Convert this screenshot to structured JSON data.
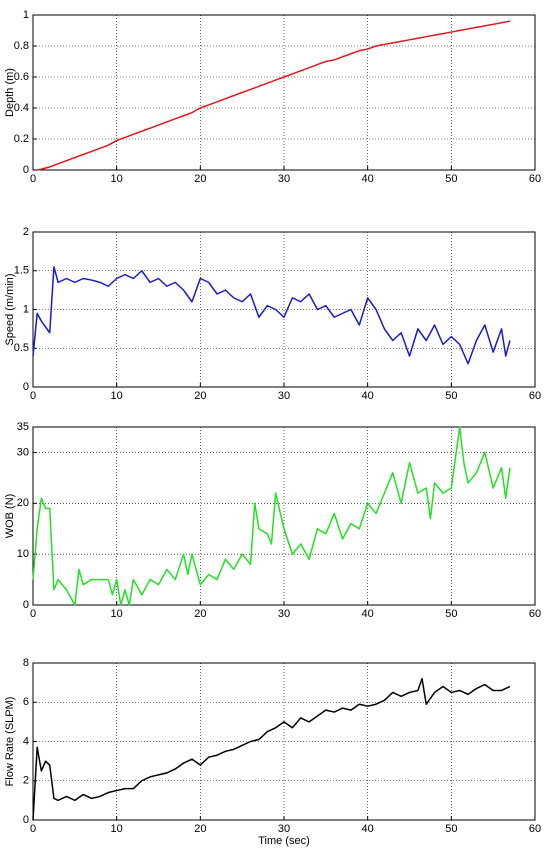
{
  "chart_data": [
    {
      "type": "line",
      "y_label": "Depth (m)",
      "xlim": [
        0,
        60
      ],
      "xticks": [
        0,
        10,
        20,
        30,
        40,
        50,
        60
      ],
      "ylim": [
        0,
        1
      ],
      "yticks": [
        0,
        0.2,
        0.4,
        0.6,
        0.8,
        1
      ],
      "grid": true,
      "series": [
        {
          "color": "#e0181c",
          "x": [
            0.5,
            1,
            2,
            3,
            4,
            5,
            6,
            7,
            8,
            9,
            10,
            11,
            12,
            13,
            14,
            15,
            16,
            17,
            18,
            19,
            20,
            21,
            22,
            23,
            24,
            25,
            26,
            27,
            28,
            29,
            30,
            31,
            32,
            33,
            34,
            35,
            36,
            37,
            38,
            39,
            40,
            41,
            42,
            43,
            44,
            45,
            46,
            47,
            48,
            49,
            50,
            51,
            52,
            53,
            54,
            55,
            56,
            57
          ],
          "values": [
            0,
            0.005,
            0.02,
            0.04,
            0.06,
            0.08,
            0.1,
            0.12,
            0.14,
            0.16,
            0.19,
            0.21,
            0.23,
            0.25,
            0.27,
            0.29,
            0.31,
            0.33,
            0.35,
            0.37,
            0.4,
            0.42,
            0.44,
            0.46,
            0.48,
            0.5,
            0.52,
            0.54,
            0.56,
            0.58,
            0.6,
            0.62,
            0.64,
            0.66,
            0.68,
            0.7,
            0.71,
            0.73,
            0.75,
            0.77,
            0.78,
            0.8,
            0.81,
            0.82,
            0.83,
            0.84,
            0.85,
            0.86,
            0.87,
            0.88,
            0.89,
            0.9,
            0.91,
            0.92,
            0.93,
            0.94,
            0.95,
            0.96
          ]
        }
      ]
    },
    {
      "type": "line",
      "y_label": "Speed (m/min)",
      "xlim": [
        0,
        60
      ],
      "xticks": [
        0,
        10,
        20,
        30,
        40,
        50,
        60
      ],
      "ylim": [
        0,
        2
      ],
      "yticks": [
        0,
        0.5,
        1,
        1.5,
        2
      ],
      "grid": true,
      "series": [
        {
          "color": "#1a1ac8",
          "x": [
            0,
            0.5,
            1,
            2,
            2.5,
            3,
            4,
            5,
            6,
            7,
            8,
            9,
            10,
            11,
            12,
            13,
            14,
            15,
            16,
            17,
            18,
            19,
            20,
            21,
            22,
            23,
            24,
            25,
            26,
            27,
            28,
            29,
            30,
            31,
            32,
            33,
            34,
            35,
            36,
            37,
            38,
            39,
            40,
            41,
            42,
            43,
            44,
            45,
            46,
            47,
            48,
            49,
            50,
            51,
            52,
            53,
            54,
            55,
            56,
            56.5,
            57
          ],
          "values": [
            0.4,
            0.95,
            0.85,
            0.7,
            1.55,
            1.35,
            1.4,
            1.35,
            1.4,
            1.38,
            1.35,
            1.3,
            1.4,
            1.45,
            1.4,
            1.5,
            1.35,
            1.4,
            1.3,
            1.35,
            1.25,
            1.1,
            1.4,
            1.35,
            1.2,
            1.25,
            1.15,
            1.1,
            1.2,
            0.9,
            1.05,
            1.0,
            0.9,
            1.15,
            1.1,
            1.2,
            1.0,
            1.05,
            0.9,
            0.95,
            1.0,
            0.8,
            1.15,
            1.0,
            0.75,
            0.6,
            0.7,
            0.4,
            0.75,
            0.6,
            0.8,
            0.55,
            0.65,
            0.55,
            0.3,
            0.6,
            0.8,
            0.45,
            0.75,
            0.4,
            0.6
          ]
        }
      ]
    },
    {
      "type": "line",
      "y_label": "WOB (N)",
      "xlim": [
        0,
        60
      ],
      "xticks": [
        0,
        10,
        20,
        30,
        40,
        50,
        60
      ],
      "ylim": [
        0,
        35
      ],
      "yticks": [
        0,
        10,
        20,
        30,
        35
      ],
      "grid": true,
      "series": [
        {
          "color": "#22e022",
          "x": [
            0,
            0.5,
            1,
            1.5,
            2,
            2.5,
            3,
            4,
            5,
            5.5,
            6,
            7,
            8,
            9,
            9.5,
            10,
            10.5,
            11,
            11.5,
            12,
            13,
            14,
            15,
            16,
            17,
            18,
            18.5,
            19,
            20,
            21,
            22,
            23,
            24,
            25,
            26,
            26.5,
            27,
            28,
            28.5,
            29,
            30,
            31,
            32,
            33,
            34,
            35,
            36,
            37,
            38,
            39,
            40,
            41,
            42,
            43,
            44,
            45,
            46,
            47,
            47.5,
            48,
            49,
            50,
            51,
            51.5,
            52,
            53,
            54,
            55,
            56,
            56.5,
            57
          ],
          "values": [
            5,
            15,
            21,
            19,
            19,
            3,
            5,
            3,
            0,
            7,
            4,
            5,
            5,
            5,
            2,
            5,
            0,
            3,
            0,
            5,
            2,
            5,
            4,
            7,
            5,
            10,
            6,
            10,
            4,
            6,
            5,
            9,
            7,
            10,
            8,
            20,
            15,
            14,
            12,
            22,
            15,
            10,
            12,
            9,
            15,
            14,
            18,
            13,
            16,
            15,
            20,
            18,
            22,
            26,
            20,
            28,
            22,
            23,
            17,
            24,
            22,
            23,
            35,
            28,
            24,
            26,
            30,
            23,
            27,
            21,
            27
          ]
        }
      ]
    },
    {
      "type": "line",
      "x_label": "Time (sec)",
      "y_label": "Flow Rate (SLPM)",
      "xlim": [
        0,
        60
      ],
      "xticks": [
        0,
        10,
        20,
        30,
        40,
        50,
        60
      ],
      "ylim": [
        0,
        8
      ],
      "yticks": [
        0,
        2,
        4,
        6,
        8
      ],
      "grid": true,
      "series": [
        {
          "color": "#000000",
          "x": [
            0,
            0.5,
            1,
            1.5,
            2,
            2.5,
            3,
            4,
            5,
            6,
            7,
            8,
            9,
            10,
            11,
            12,
            13,
            14,
            15,
            16,
            17,
            18,
            19,
            20,
            21,
            22,
            23,
            24,
            25,
            26,
            27,
            28,
            29,
            30,
            31,
            32,
            33,
            34,
            35,
            36,
            37,
            38,
            39,
            40,
            41,
            42,
            43,
            44,
            45,
            46,
            46.5,
            47,
            48,
            49,
            50,
            51,
            52,
            53,
            54,
            55,
            56,
            57
          ],
          "values": [
            0,
            3.7,
            2.5,
            3,
            2.8,
            1.1,
            1,
            1.2,
            1,
            1.3,
            1.1,
            1.2,
            1.4,
            1.5,
            1.6,
            1.6,
            2.0,
            2.2,
            2.3,
            2.4,
            2.6,
            2.9,
            3.1,
            2.8,
            3.2,
            3.3,
            3.5,
            3.6,
            3.8,
            4.0,
            4.1,
            4.5,
            4.7,
            5.0,
            4.7,
            5.2,
            5.0,
            5.3,
            5.6,
            5.5,
            5.7,
            5.6,
            5.9,
            5.8,
            5.9,
            6.1,
            6.5,
            6.3,
            6.5,
            6.6,
            7.2,
            5.9,
            6.5,
            6.8,
            6.5,
            6.6,
            6.4,
            6.7,
            6.9,
            6.6,
            6.6,
            6.8
          ]
        }
      ]
    }
  ]
}
